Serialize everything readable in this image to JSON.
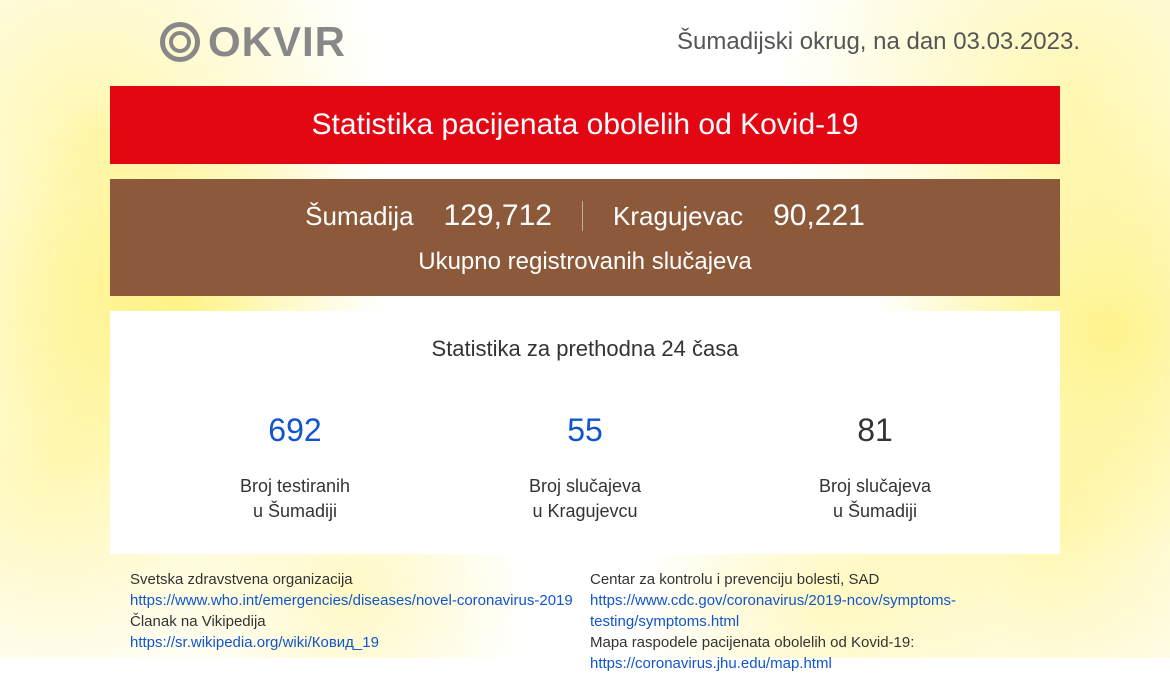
{
  "logo": {
    "text": "OKVIR"
  },
  "header": {
    "region_label": "Šumadijski okrug, na dan",
    "date": "03.03.2023."
  },
  "banner": {
    "title": "Statistika pacijenata obolelih od Kovid-19",
    "bg_color": "#e30613",
    "text_color": "#ffffff"
  },
  "totals_panel": {
    "bg_color": "#8c5a3a",
    "text_color": "#ffffff",
    "region1_label": "Šumadija",
    "region1_value": "129,712",
    "region2_label": "Kragujevac",
    "region2_value": "90,221",
    "caption": "Ukupno registrovanih slučajeva"
  },
  "stats": {
    "title": "Statistika za prethodna 24 časa",
    "items": [
      {
        "value": "692",
        "value_color": "#1155cc",
        "label_line1": "Broj testiranih",
        "label_line2": "u Šumadiji"
      },
      {
        "value": "55",
        "value_color": "#1155cc",
        "label_line1": "Broj slučajeva",
        "label_line2": "u Kragujevcu"
      },
      {
        "value": "81",
        "value_color": "#333333",
        "label_line1": "Broj slučajeva",
        "label_line2": "u Šumadiji"
      }
    ]
  },
  "footer": {
    "left": {
      "source1_label": "Svetska zdravstvena organizacija",
      "source1_link": "https://www.who.int/emergencies/diseases/novel-coronavirus-2019",
      "source2_label": "Članak na Vikipedija",
      "source2_link": "https://sr.wikipedia.org/wiki/Ковид_19"
    },
    "right": {
      "source1_label": "Centar za kontrolu i prevenciju bolesti, SAD",
      "source1_link": "https://www.cdc.gov/coronavirus/2019-ncov/symptoms-testing/symptoms.html",
      "source2_label": "Mapa raspodele pacijenata obolelih od Kovid-19:",
      "source2_link": "https://coronavirus.jhu.edu/map.html"
    }
  },
  "colors": {
    "link": "#1155cc",
    "text": "#333333",
    "logo_gray": "#888888"
  }
}
